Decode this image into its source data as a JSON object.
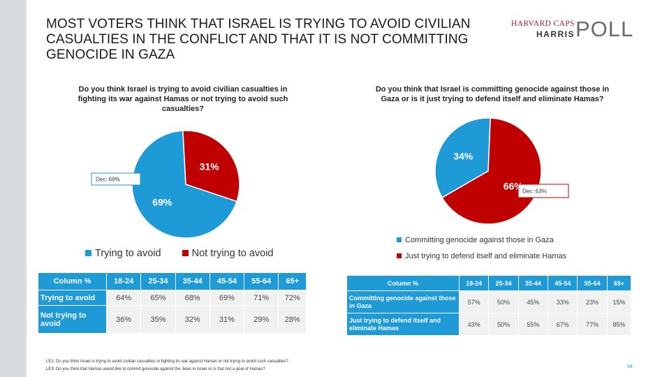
{
  "title": "MOST VOTERS THINK THAT ISRAEL IS TRYING TO AVOID CIVILIAN CASUALTIES IN THE CONFLICT AND THAT IT IS NOT COMMITTING GENOCIDE IN GAZA",
  "logo": {
    "line1": "HARVARD CAPS",
    "line2": "HARRIS",
    "line3": "POLL"
  },
  "colors": {
    "blue": "#1e9bd7",
    "red": "#c00000"
  },
  "chart_data": [
    {
      "type": "pie",
      "title": "Do you think Israel is trying to avoid civilian casualties in fighting its war against Hamas or not trying to avoid such casualties?",
      "labels": [
        "Trying to avoid",
        "Not trying to avoid"
      ],
      "values": [
        69,
        31
      ],
      "value_labels": [
        "69%",
        "31%"
      ],
      "annotation": "Dec: 69%",
      "legend_position": "bottom"
    },
    {
      "type": "pie",
      "title": "Do you think that Israel is committing genocide against those in Gaza or is it just trying to defend itself and eliminate Hamas?",
      "labels": [
        "Committing genocide against those in Gaza",
        "Just trying to defend itself and eliminate Hamas"
      ],
      "values": [
        34,
        66
      ],
      "value_labels": [
        "34%",
        "66%"
      ],
      "annotation": "Dec: 63%",
      "legend_position": "bottom"
    },
    {
      "type": "table",
      "columns": [
        "Column %",
        "18-24",
        "25-34",
        "35-44",
        "45-54",
        "55-64",
        "65+"
      ],
      "rows": [
        {
          "label": "Trying to avoid",
          "values": [
            "64%",
            "65%",
            "68%",
            "69%",
            "71%",
            "72%"
          ]
        },
        {
          "label": "Not trying to avoid",
          "values": [
            "36%",
            "35%",
            "32%",
            "31%",
            "29%",
            "28%"
          ]
        }
      ]
    },
    {
      "type": "table",
      "columns": [
        "Column %",
        "18-24",
        "25-34",
        "35-44",
        "45-54",
        "55-64",
        "65+"
      ],
      "rows": [
        {
          "label": "Committing genocide against those in Gaza",
          "values": [
            "57%",
            "50%",
            "45%",
            "33%",
            "23%",
            "15%"
          ]
        },
        {
          "label": "Just trying to defend itself and eliminate Hamas",
          "values": [
            "43%",
            "50%",
            "55%",
            "67%",
            "77%",
            "85%"
          ]
        }
      ]
    }
  ],
  "footnotes": [
    "LE1: Do you think Israel is trying to avoid civilian casualties in fighting its war against Hamas or not trying to avoid such casualties?",
    "LE3: Do you think that Hamas would like to commit genocide against the Jews in Israel or is that not a goal of Hamas?"
  ],
  "page_number": "54"
}
